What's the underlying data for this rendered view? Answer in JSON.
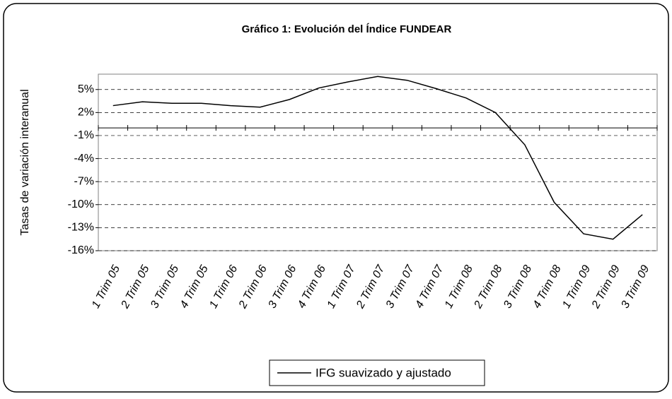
{
  "chart_data": {
    "type": "line",
    "title": "Gráfico 1: Evolución del Índice FUNDEAR",
    "y_label": "Tasas de variación interanual",
    "categories": [
      "1 Trim 05",
      "2 Trim 05",
      "3 Trim 05",
      "4 Trim 05",
      "1 Trim 06",
      "2 Trim 06",
      "3 Trim 06",
      "4 Trim 06",
      "1 Trim 07",
      "2 Trim 07",
      "3 Trim 07",
      "4 Trim 07",
      "1 Trim 08",
      "2 Trim 08",
      "3 Trim 08",
      "4 Trim 08",
      "1 Trim 09",
      "2 Trim 09",
      "3 Trim 09"
    ],
    "series": [
      {
        "name": "IFG suavizado y ajustado",
        "color": "#000000",
        "values": [
          2.9,
          3.4,
          3.2,
          3.2,
          2.9,
          2.7,
          3.7,
          5.2,
          6.0,
          6.7,
          6.2,
          5.1,
          3.9,
          2.0,
          -2.2,
          -9.7,
          -13.8,
          -14.5,
          -11.3
        ]
      }
    ],
    "ylim": [
      -16,
      7
    ],
    "yticks": [
      {
        "value": 5,
        "label": "5%"
      },
      {
        "value": 2,
        "label": "2%"
      },
      {
        "value": -1,
        "label": "-1%"
      },
      {
        "value": -4,
        "label": "-4%"
      },
      {
        "value": -7,
        "label": "-7%"
      },
      {
        "value": -10,
        "label": "-10%"
      },
      {
        "value": -13,
        "label": "-13%"
      },
      {
        "value": -16,
        "label": "-16%"
      }
    ],
    "grid": true,
    "legend": "bottom"
  }
}
